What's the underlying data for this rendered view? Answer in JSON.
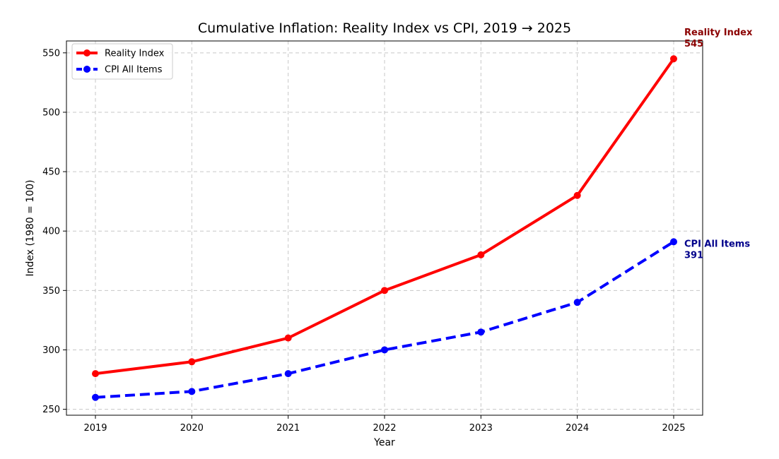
{
  "chart_data": {
    "type": "line",
    "title": "Cumulative Inflation: Reality Index vs CPI, 2019 → 2025",
    "xlabel": "Year",
    "ylabel": "Index (1980 = 100)",
    "x": [
      "2019",
      "2020",
      "2021",
      "2022",
      "2023",
      "2024",
      "2025"
    ],
    "ylim": [
      245,
      560
    ],
    "yticks": [
      250,
      300,
      350,
      400,
      450,
      500,
      550
    ],
    "grid": true,
    "legend_position": "top-left",
    "series": [
      {
        "name": "Reality Index",
        "values": [
          280,
          290,
          310,
          350,
          380,
          430,
          545
        ],
        "color": "#ff0000",
        "style": "solid",
        "end_label_name": "Reality Index",
        "end_label_value": "545",
        "end_label_color": "#8b0000"
      },
      {
        "name": "CPI All Items",
        "values": [
          260,
          265,
          280,
          300,
          315,
          340,
          391
        ],
        "color": "#0000ff",
        "style": "dashed",
        "end_label_name": "CPI All Items",
        "end_label_value": "391",
        "end_label_color": "#00008b"
      }
    ]
  }
}
